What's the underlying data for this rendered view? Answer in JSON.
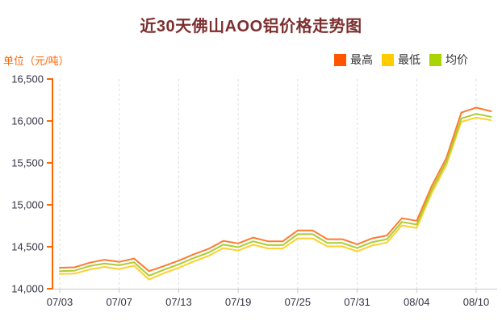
{
  "title": "近30天佛山AOO铝价格走势图",
  "unit_label": "单位（元/吨）",
  "colors": {
    "title": "#7d2f2f",
    "unit_label": "#ff6600",
    "y_axis": "#ff6600",
    "axis_text": "#333344",
    "x_axis": "#c8c8c8",
    "gridline": "#dedede",
    "legend_text": "#333333"
  },
  "chart_data": {
    "type": "line",
    "title": "近30天佛山AOO铝价格走势图",
    "ylabel": "单位（元/吨）",
    "ylim": [
      14000,
      16500
    ],
    "y_ticks": [
      14000,
      14500,
      15000,
      15500,
      16000,
      16500
    ],
    "y_tick_labels": [
      "14,000",
      "14,500",
      "15,000",
      "15,500",
      "16,000",
      "16,500"
    ],
    "x_ticks": [
      {
        "label": "07/03",
        "index": 0
      },
      {
        "label": "07/07",
        "index": 4
      },
      {
        "label": "07/13",
        "index": 8
      },
      {
        "label": "07/19",
        "index": 12
      },
      {
        "label": "07/25",
        "index": 16
      },
      {
        "label": "07/31",
        "index": 20
      },
      {
        "label": "08/04",
        "index": 24
      },
      {
        "label": "08/10",
        "index": 28
      }
    ],
    "n_points": 30,
    "grid": "vertical-dashed",
    "legend_position": "top-right",
    "series": [
      {
        "id": "high",
        "name": "最高",
        "legend_color": "#ff5500",
        "line_color": "#ff7a2e",
        "values": [
          14250,
          14255,
          14310,
          14345,
          14320,
          14360,
          14210,
          14270,
          14335,
          14410,
          14475,
          14570,
          14540,
          14610,
          14565,
          14565,
          14695,
          14695,
          14590,
          14590,
          14530,
          14600,
          14635,
          14840,
          14810,
          15220,
          15560,
          16100,
          16160,
          16115
        ]
      },
      {
        "id": "low",
        "name": "最低",
        "legend_color": "#ffcc00",
        "line_color": "#ffcf2e",
        "values": [
          14175,
          14180,
          14230,
          14260,
          14235,
          14275,
          14110,
          14185,
          14250,
          14325,
          14390,
          14485,
          14455,
          14525,
          14480,
          14480,
          14600,
          14600,
          14505,
          14505,
          14445,
          14515,
          14550,
          14755,
          14725,
          15135,
          15475,
          15990,
          16040,
          16010
        ]
      },
      {
        "id": "avg",
        "name": "均价",
        "legend_color": "#aad400",
        "line_color": "#a8ce32",
        "values": [
          14210,
          14215,
          14270,
          14300,
          14280,
          14315,
          14155,
          14225,
          14290,
          14365,
          14430,
          14525,
          14495,
          14565,
          14520,
          14520,
          14650,
          14650,
          14545,
          14545,
          14485,
          14555,
          14590,
          14795,
          14765,
          15175,
          15515,
          16030,
          16085,
          16050
        ]
      }
    ]
  }
}
